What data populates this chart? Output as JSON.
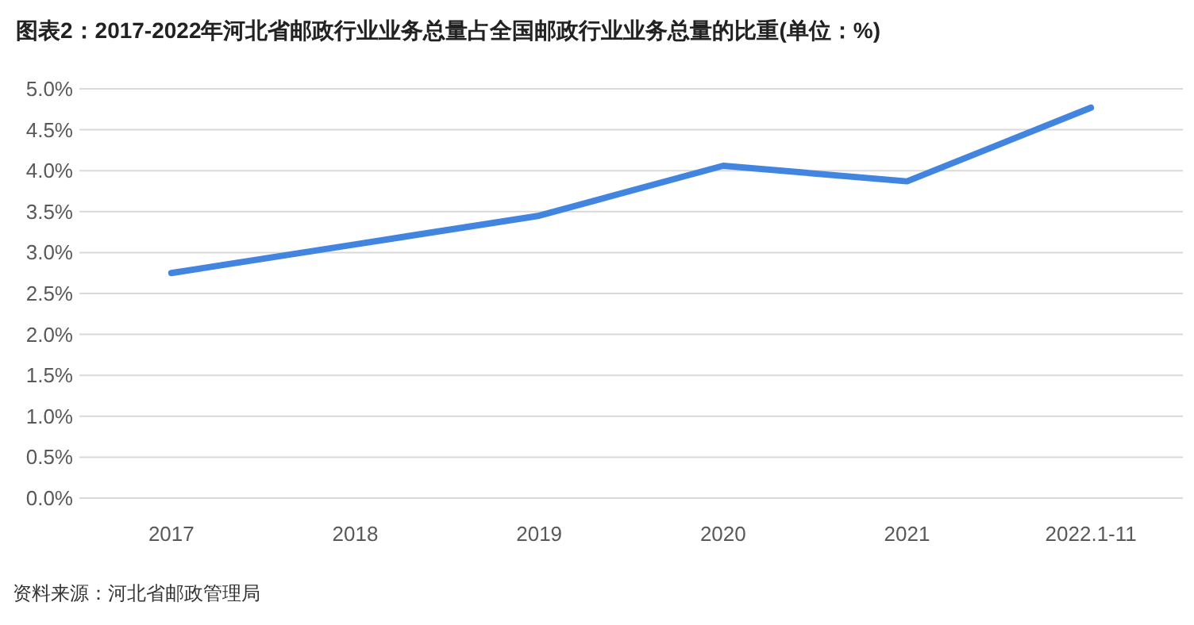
{
  "chart_data": {
    "type": "line",
    "title": "图表2：2017-2022年河北省邮政行业业务总量占全国邮政行业业务总量的比重(单位：%)",
    "categories": [
      "2017",
      "2018",
      "2019",
      "2020",
      "2021",
      "2022.1-11"
    ],
    "series": [
      {
        "color": "#4185e0",
        "values": [
          2.75,
          3.1,
          3.45,
          4.06,
          3.87,
          4.77
        ]
      }
    ],
    "ylim": [
      0,
      5
    ],
    "yticks": [
      {
        "value": 0,
        "label": "0.0%"
      },
      {
        "value": 0.5,
        "label": "0.5%"
      },
      {
        "value": 1,
        "label": "1.0%"
      },
      {
        "value": 1.5,
        "label": "1.5%"
      },
      {
        "value": 2,
        "label": "2.0%"
      },
      {
        "value": 2.5,
        "label": "2.5%"
      },
      {
        "value": 3,
        "label": "3.0%"
      },
      {
        "value": 3.5,
        "label": "3.5%"
      },
      {
        "value": 4,
        "label": "4.0%"
      },
      {
        "value": 4.5,
        "label": "4.5%"
      },
      {
        "value": 5,
        "label": "5.0%"
      }
    ],
    "grid": "y",
    "marker": "none",
    "line_style": "solid",
    "annotations": [
      "资料来源：河北省邮政管理局"
    ]
  }
}
